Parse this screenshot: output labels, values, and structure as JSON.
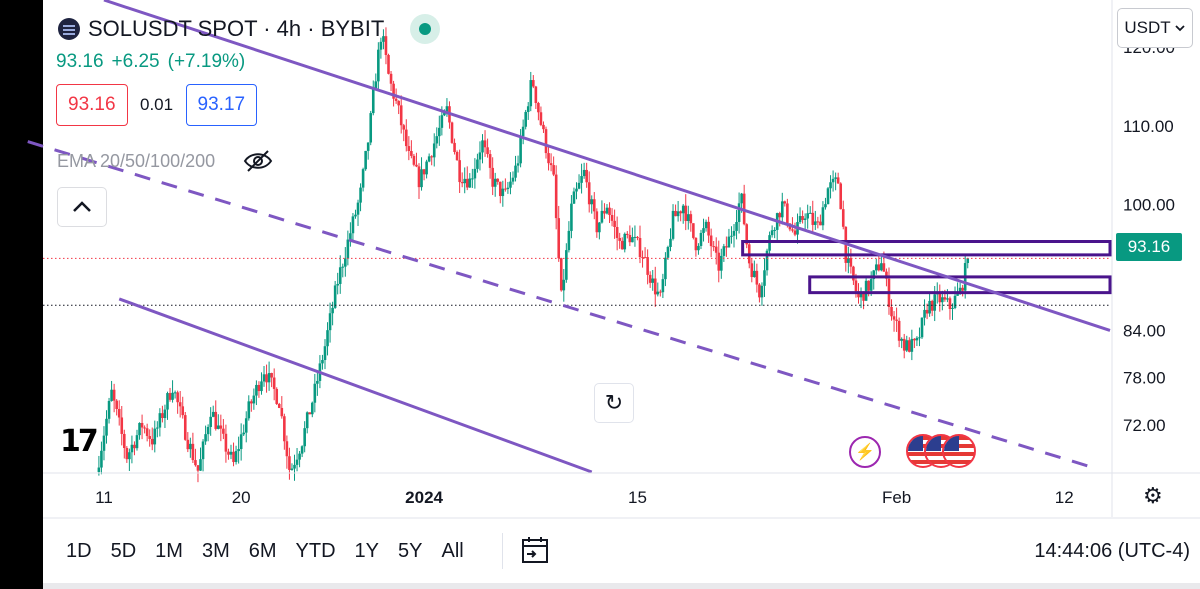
{
  "header": {
    "symbol_title": "SOLUSDT SPOT · 4h · BYBIT",
    "last_price": "93.16",
    "change": "+6.25",
    "change_pct": "(+7.19%)",
    "bid": "93.16",
    "spread": "0.01",
    "ask": "93.17",
    "indicator": "EMA 20/50/100/200"
  },
  "icons": [
    "symbol-logo-icon",
    "live-status-icon",
    "hide-eye-icon",
    "chevron-up-icon",
    "reset-icon",
    "tradingview-logo-icon",
    "flash-icon",
    "us-flag-icon",
    "settings-gear-icon",
    "calendar-range-icon",
    "chevron-down-icon"
  ],
  "currency": "USDT",
  "timeframes": [
    "1D",
    "5D",
    "1M",
    "3M",
    "6M",
    "YTD",
    "1Y",
    "5Y",
    "All"
  ],
  "clock": "14:44:06 (UTC-4)",
  "colors": {
    "up": "#089981",
    "down": "#f23645",
    "channel": "#7e57c2",
    "zone": "#4a148c",
    "ask": "#2962ff"
  },
  "chart_data": {
    "type": "candlestick",
    "symbol": "SOLUSDT",
    "interval": "4h",
    "last": 93.16,
    "y_ticks": [
      72.0,
      78.0,
      84.0,
      100.0,
      110.0,
      120.0
    ],
    "y_tick_labels": [
      "72.00",
      "78.00",
      "84.00",
      "100.00",
      "110.00",
      "120.00"
    ],
    "x_ticks": [
      {
        "label": "11",
        "day": 11
      },
      {
        "label": "20",
        "day": 20
      },
      {
        "label": "2024",
        "day": 32
      },
      {
        "label": "15",
        "day": 46
      },
      {
        "label": "Feb",
        "day": 63
      },
      {
        "label": "12",
        "day": 74
      }
    ],
    "path_keys": [
      [
        0.0,
        66
      ],
      [
        1.0,
        76
      ],
      [
        2.0,
        68
      ],
      [
        3.0,
        72
      ],
      [
        3.7,
        70
      ],
      [
        5.0,
        77
      ],
      [
        6.0,
        70
      ],
      [
        6.7,
        66
      ],
      [
        7.5,
        74
      ],
      [
        8.3,
        70
      ],
      [
        9.0,
        67
      ],
      [
        10.0,
        74
      ],
      [
        11.0,
        79
      ],
      [
        12.0,
        75
      ],
      [
        12.7,
        66
      ],
      [
        13.5,
        70
      ],
      [
        14.3,
        76
      ],
      [
        15.0,
        82
      ],
      [
        15.8,
        90
      ],
      [
        16.6,
        96
      ],
      [
        17.3,
        101
      ],
      [
        17.9,
        109
      ],
      [
        18.3,
        116
      ],
      [
        18.7,
        122
      ],
      [
        19.2,
        116
      ],
      [
        19.8,
        112
      ],
      [
        20.5,
        106
      ],
      [
        21.2,
        103
      ],
      [
        22.0,
        107
      ],
      [
        23.0,
        112
      ],
      [
        23.8,
        104
      ],
      [
        24.5,
        103
      ],
      [
        25.3,
        108
      ],
      [
        26.0,
        103
      ],
      [
        26.8,
        101
      ],
      [
        27.6,
        105
      ],
      [
        28.2,
        112
      ],
      [
        28.6,
        116
      ],
      [
        29.2,
        110
      ],
      [
        30.0,
        103
      ],
      [
        30.5,
        88
      ],
      [
        31.2,
        100
      ],
      [
        32.0,
        104
      ],
      [
        32.8,
        97
      ],
      [
        33.5,
        100
      ],
      [
        34.3,
        95
      ],
      [
        35.0,
        96
      ],
      [
        35.8,
        94
      ],
      [
        36.5,
        90
      ],
      [
        37.0,
        88
      ],
      [
        37.8,
        98
      ],
      [
        38.5,
        100
      ],
      [
        39.3,
        95
      ],
      [
        40.0,
        97
      ],
      [
        40.8,
        92
      ],
      [
        41.6,
        96
      ],
      [
        42.3,
        101
      ],
      [
        42.8,
        93
      ],
      [
        43.5,
        89
      ],
      [
        44.3,
        97
      ],
      [
        45.0,
        100
      ],
      [
        45.8,
        96
      ],
      [
        46.5,
        99
      ],
      [
        47.3,
        97
      ],
      [
        48.0,
        102
      ],
      [
        48.7,
        103
      ],
      [
        49.2,
        93
      ],
      [
        50.0,
        88
      ],
      [
        50.8,
        90
      ],
      [
        51.5,
        93
      ],
      [
        52.2,
        86
      ],
      [
        53.0,
        82
      ],
      [
        53.8,
        82
      ],
      [
        54.5,
        87
      ],
      [
        55.3,
        88
      ],
      [
        56.0,
        87
      ],
      [
        56.7,
        89
      ],
      [
        57.2,
        93.16
      ]
    ],
    "x_range_days": [
      7,
      77
    ],
    "y_range": [
      66,
      126
    ],
    "channel_lines": [
      {
        "style": "solid",
        "from": [
          11,
          126
        ],
        "to": [
          77,
          84
        ]
      },
      {
        "style": "dashed",
        "from": [
          6,
          108
        ],
        "to": [
          76,
          66.5
        ]
      },
      {
        "style": "solid",
        "from": [
          12,
          88
        ],
        "to": [
          43,
          66
        ]
      }
    ],
    "zones": [
      {
        "top": 95.3,
        "bottom": 93.6,
        "from_day": 52.9
      },
      {
        "top": 90.8,
        "bottom": 88.8,
        "from_day": 57.3
      }
    ],
    "price_lines": [
      {
        "value": 93.16,
        "style": "dotted",
        "color": "#f23645"
      },
      {
        "value": 87.2,
        "style": "dotted",
        "color": "#131722"
      }
    ]
  }
}
